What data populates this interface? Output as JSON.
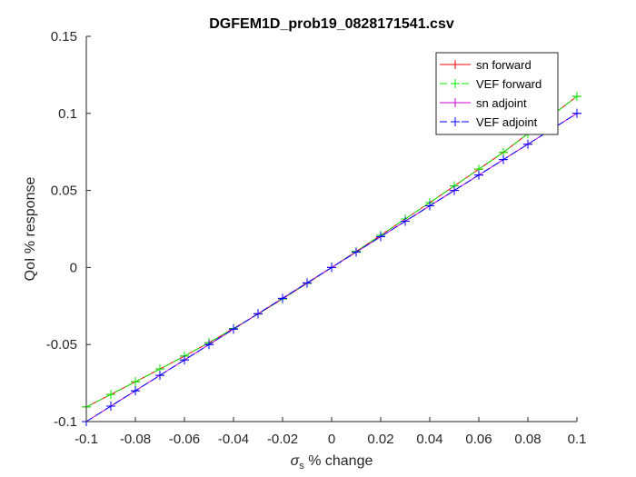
{
  "chart_data": {
    "type": "line",
    "title": "DGFEM1D_prob19_0828171541.csv",
    "xlabel": {
      "symbol": "σ",
      "subscript": "s",
      "text": " % change"
    },
    "ylabel": "QoI % response",
    "xlim": [
      -0.1,
      0.1
    ],
    "ylim": [
      -0.1,
      0.15
    ],
    "xticks": [
      -0.1,
      -0.08,
      -0.06,
      -0.04,
      -0.02,
      0,
      0.02,
      0.04,
      0.06,
      0.08,
      0.1
    ],
    "xtick_labels": [
      "-0.1",
      "-0.08",
      "-0.06",
      "-0.04",
      "-0.02",
      "0",
      "0.02",
      "0.04",
      "0.06",
      "0.08",
      "0.1"
    ],
    "yticks": [
      -0.1,
      -0.05,
      0,
      0.05,
      0.1,
      0.15
    ],
    "ytick_labels": [
      "-0.1",
      "-0.05",
      "0",
      "0.05",
      "0.1",
      "0.15"
    ],
    "grid": false,
    "legend_position": "top-right",
    "x": [
      -0.1,
      -0.09,
      -0.08,
      -0.07,
      -0.06,
      -0.05,
      -0.04,
      -0.03,
      -0.02,
      -0.01,
      0,
      0.01,
      0.02,
      0.03,
      0.04,
      0.05,
      0.06,
      0.07,
      0.08,
      0.09,
      0.1
    ],
    "series": [
      {
        "name": "sn forward",
        "color": "#ff0000",
        "dash": "solid",
        "marker": "plus",
        "values": [
          -0.0905,
          -0.0824,
          -0.0742,
          -0.0659,
          -0.0575,
          -0.0488,
          -0.0396,
          -0.0302,
          -0.0204,
          -0.0103,
          0,
          0.0104,
          0.0209,
          0.0315,
          0.0421,
          0.0529,
          0.0638,
          0.0747,
          0.0868,
          0.099,
          0.111
        ]
      },
      {
        "name": "VEF forward",
        "color": "#00ee00",
        "dash": "dashed",
        "marker": "plus",
        "values": [
          -0.0905,
          -0.0824,
          -0.0742,
          -0.0659,
          -0.0575,
          -0.0488,
          -0.0396,
          -0.0302,
          -0.0204,
          -0.0103,
          0,
          0.0104,
          0.0209,
          0.0315,
          0.0421,
          0.0529,
          0.0638,
          0.0747,
          0.0868,
          0.099,
          0.111
        ]
      },
      {
        "name": "sn adjoint",
        "color": "#cc00cc",
        "dash": "solid",
        "marker": "plus",
        "values": [
          -0.1,
          -0.09,
          -0.08,
          -0.07,
          -0.06,
          -0.05,
          -0.04,
          -0.03,
          -0.02,
          -0.01,
          0,
          0.01,
          0.02,
          0.03,
          0.04,
          0.05,
          0.06,
          0.07,
          0.08,
          0.09,
          0.1
        ]
      },
      {
        "name": "VEF adjoint",
        "color": "#0000ff",
        "dash": "dashed",
        "marker": "plus",
        "values": [
          -0.1,
          -0.09,
          -0.08,
          -0.07,
          -0.06,
          -0.05,
          -0.04,
          -0.03,
          -0.02,
          -0.01,
          0,
          0.01,
          0.02,
          0.03,
          0.04,
          0.05,
          0.06,
          0.07,
          0.08,
          0.09,
          0.1
        ]
      }
    ]
  }
}
